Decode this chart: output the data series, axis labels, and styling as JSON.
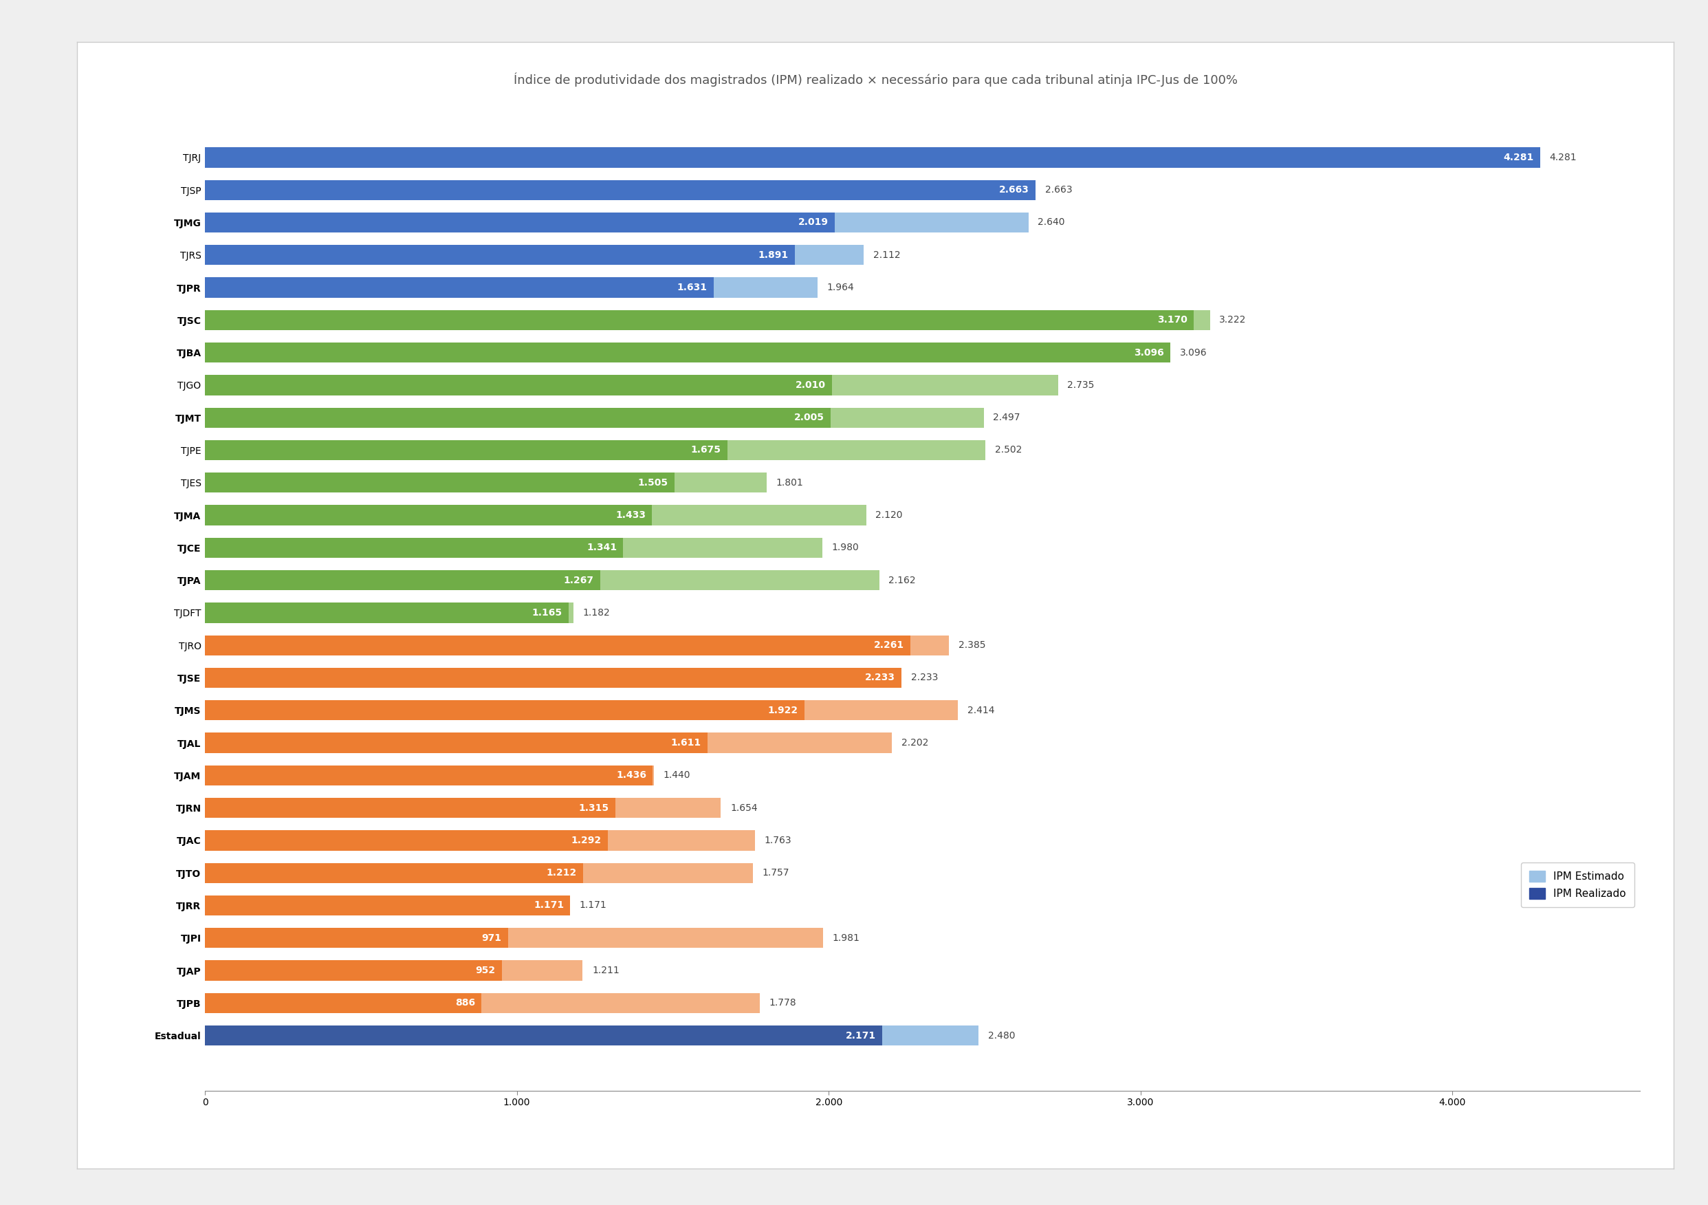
{
  "title": "Índice de produtividade dos magistrados (IPM) realizado × necessário para que cada tribunal atinja IPC-Jus de 100%",
  "categories": [
    "TJRJ",
    "TJSP",
    "TJMG",
    "TJRS",
    "TJPR",
    "TJSC",
    "TJBA",
    "TJGO",
    "TJMT",
    "TJPE",
    "TJES",
    "TJMA",
    "TJCE",
    "TJPA",
    "TJDFT",
    "TJRO",
    "TJSE",
    "TJMS",
    "TJAL",
    "TJAM",
    "TJRN",
    "TJAC",
    "TJTO",
    "TJRR",
    "TJPI",
    "TJAP",
    "TJPB",
    "Estadual"
  ],
  "ipm_realizado": [
    4281,
    2663,
    2019,
    1891,
    1631,
    3170,
    3096,
    2010,
    2005,
    1675,
    1505,
    1433,
    1341,
    1267,
    1165,
    2261,
    2233,
    1922,
    1611,
    1436,
    1315,
    1292,
    1212,
    1171,
    971,
    952,
    886,
    2171
  ],
  "ipm_estimado": [
    4281,
    2663,
    2640,
    2112,
    1964,
    3222,
    3096,
    2735,
    2497,
    2502,
    1801,
    2120,
    1980,
    2162,
    1182,
    2385,
    2233,
    2414,
    2202,
    1440,
    1654,
    1763,
    1757,
    1171,
    1981,
    1211,
    1778,
    2480
  ],
  "ipm_realizado_labels": [
    "4.281",
    "2.663",
    "2.019",
    "1.891",
    "1.631",
    "3.170",
    "3.096",
    "2.010",
    "2.005",
    "1.675",
    "1.505",
    "1.433",
    "1.341",
    "1.267",
    "1.165",
    "2.261",
    "2.233",
    "1.922",
    "1.611",
    "1.436",
    "1.315",
    "1.292",
    "1.212",
    "1.171",
    "971",
    "952",
    "886",
    "2.171"
  ],
  "ipm_estimado_labels": [
    "4.281",
    "2.663",
    "2.640",
    "2.112",
    "1.964",
    "3.222",
    "3.096",
    "2.735",
    "2.497",
    "2.502",
    "1.801",
    "2.120",
    "1.980",
    "2.162",
    "1.182",
    "2.385",
    "2.233",
    "2.414",
    "2.202",
    "1.440",
    "1.654",
    "1.763",
    "1.757",
    "1.171",
    "1.981",
    "1.211",
    "1.778",
    "2.480"
  ],
  "groups": {
    "blue": [
      "TJRJ",
      "TJSP",
      "TJMG",
      "TJRS",
      "TJPR"
    ],
    "green": [
      "TJSC",
      "TJBA",
      "TJGO",
      "TJMT",
      "TJPE",
      "TJES",
      "TJMA",
      "TJCE",
      "TJPA",
      "TJDFT"
    ],
    "orange": [
      "TJRO",
      "TJSE",
      "TJMS",
      "TJAL",
      "TJAM",
      "TJRN",
      "TJAC",
      "TJTO",
      "TJRR",
      "TJPI",
      "TJAP",
      "TJPB"
    ],
    "estadual": [
      "Estadual"
    ]
  },
  "colors": {
    "blue_dark": "#4472C4",
    "blue_light": "#9DC3E6",
    "green_dark": "#70AD47",
    "green_light": "#A9D18E",
    "orange_dark": "#ED7D31",
    "orange_light": "#F4B183",
    "estadual_dark": "#3A5BA0",
    "estadual_light": "#9DC3E6"
  },
  "bold_categories": [
    "TJMG",
    "TJPR",
    "TJSC",
    "TJBA",
    "TJMT",
    "TJMA",
    "TJCE",
    "TJPA",
    "TJSE",
    "TJMS",
    "TJAL",
    "TJAM",
    "TJRN",
    "TJAC",
    "TJTO",
    "TJRR",
    "TJPI",
    "TJAP",
    "TJPB",
    "Estadual"
  ],
  "legend_estimado": "#9DC3E6",
  "legend_realizado": "#2E4B9E",
  "bg_outer": "#EFEFEF",
  "bg_card": "#FFFFFF",
  "bar_height": 0.62,
  "xlim_max": 4600,
  "xtick_vals": [
    0,
    1000,
    2000,
    3000,
    4000
  ],
  "xtick_labels": [
    "0",
    "1.000",
    "2.000",
    "3.000",
    "4.000"
  ],
  "title_fontsize": 13,
  "label_fontsize": 10,
  "ytick_fontsize": 10,
  "xtick_fontsize": 10
}
